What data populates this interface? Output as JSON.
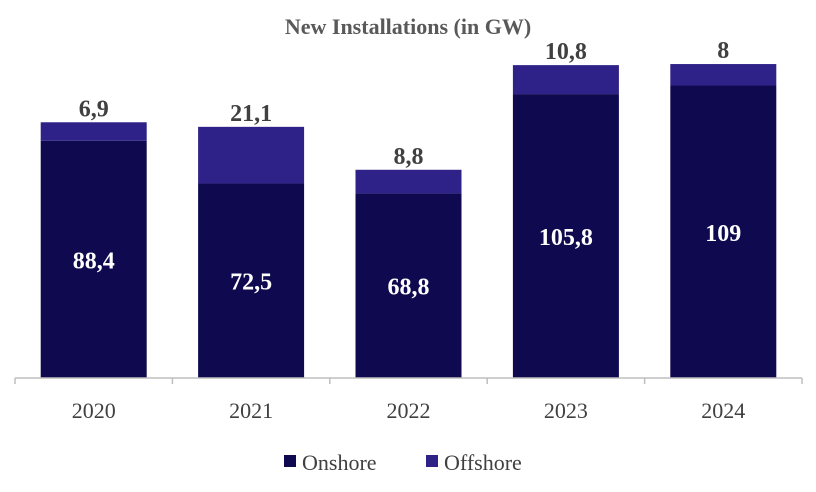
{
  "chart_data": {
    "type": "bar",
    "stacked": true,
    "title": "New Installations (in GW)",
    "categories": [
      "2020",
      "2021",
      "2022",
      "2023",
      "2024"
    ],
    "series": [
      {
        "name": "Onshore",
        "color": "#0f0a4f",
        "values": [
          88.4,
          72.5,
          68.8,
          105.8,
          109
        ],
        "labels": [
          "88,4",
          "72,5",
          "68,8",
          "105,8",
          "109"
        ]
      },
      {
        "name": "Offshore",
        "color": "#2e2187",
        "values": [
          6.9,
          21.1,
          8.8,
          10.8,
          8
        ],
        "labels": [
          "6,9",
          "21,1",
          "8,8",
          "10,8",
          "8"
        ]
      }
    ],
    "ylim": [
      0,
      120
    ],
    "grid": false,
    "legend": "bottom-center",
    "axis_color": "#bfbfbf"
  }
}
